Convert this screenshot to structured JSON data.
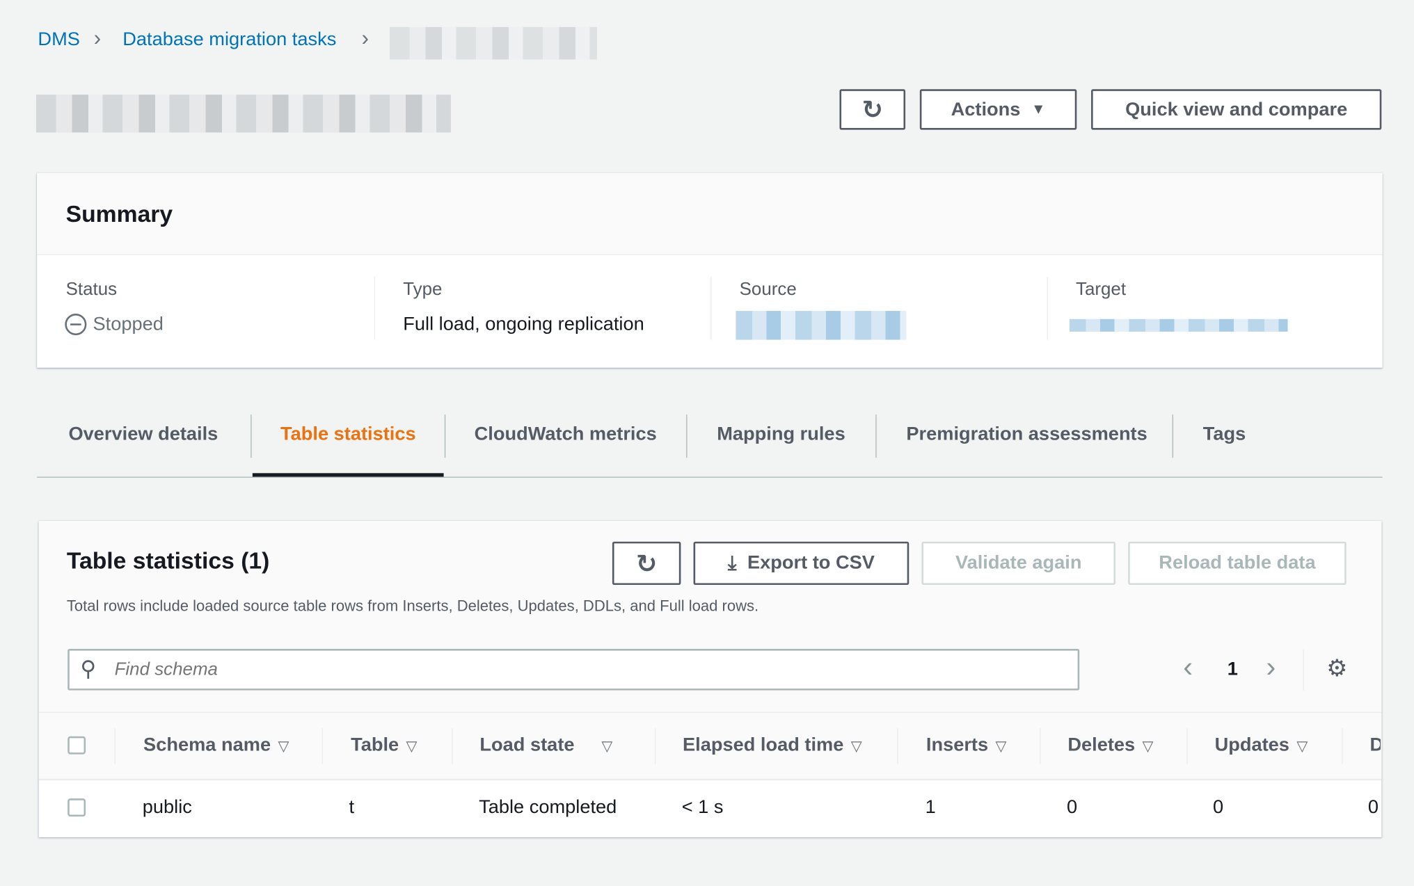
{
  "breadcrumb": {
    "items": [
      "DMS",
      "Database migration tasks"
    ]
  },
  "header": {
    "actions_label": "Actions",
    "quick_view_label": "Quick view and compare"
  },
  "summary": {
    "title": "Summary",
    "status_label": "Status",
    "status_value": "Stopped",
    "type_label": "Type",
    "type_value": "Full load, ongoing replication",
    "source_label": "Source",
    "target_label": "Target"
  },
  "tabs": [
    {
      "label": "Overview details"
    },
    {
      "label": "Table statistics",
      "active": true
    },
    {
      "label": "CloudWatch metrics"
    },
    {
      "label": "Mapping rules"
    },
    {
      "label": "Premigration assessments"
    },
    {
      "label": "Tags"
    }
  ],
  "table_stats": {
    "title": "Table statistics (1)",
    "export_label": "Export to CSV",
    "validate_label": "Validate again",
    "reload_label": "Reload table data",
    "description": "Total rows include loaded source table rows from Inserts, Deletes, Updates, DDLs, and Full load rows.",
    "search_placeholder": "Find schema",
    "page": "1",
    "columns": [
      "Schema name",
      "Table",
      "Load state",
      "Elapsed load time",
      "Inserts",
      "Deletes",
      "Updates",
      "D"
    ],
    "rows": [
      [
        "public",
        "t",
        "Table completed",
        "< 1 s",
        "1",
        "0",
        "0",
        "0"
      ]
    ]
  },
  "colors": {
    "accent": "#ec7211",
    "link": "#0073bb"
  }
}
